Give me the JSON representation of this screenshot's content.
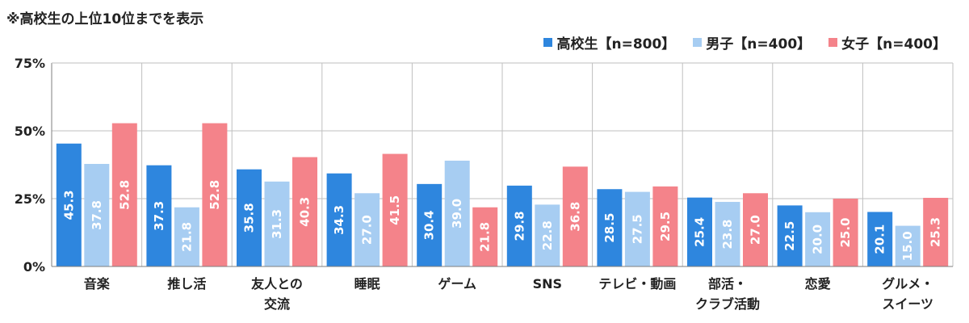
{
  "note": "※高校生の上位10位までを表示",
  "colors": {
    "grid": "#bfbfbf",
    "axis": "#7f7f7f",
    "label": "#ffffff",
    "text": "#222222"
  },
  "chart_data": {
    "type": "bar",
    "title": "",
    "xlabel": "",
    "ylabel": "",
    "ylim": [
      0,
      75
    ],
    "yticks": [
      0,
      25,
      50,
      75
    ],
    "ytick_labels": [
      "0%",
      "25%",
      "50%",
      "75%"
    ],
    "grid": true,
    "legend_position": "top-right",
    "categories": [
      [
        "音楽"
      ],
      [
        "推し活"
      ],
      [
        "友人との",
        "交流"
      ],
      [
        "睡眠"
      ],
      [
        "ゲーム"
      ],
      [
        "SNS"
      ],
      [
        "テレビ・動画"
      ],
      [
        "部活・",
        "クラブ活動"
      ],
      [
        "恋愛"
      ],
      [
        "グルメ・",
        "スイーツ"
      ]
    ],
    "series": [
      {
        "name": "高校生【n=800】",
        "color": "#2e86de",
        "values": [
          45.3,
          37.3,
          35.8,
          34.3,
          30.4,
          29.8,
          28.5,
          25.4,
          22.5,
          20.1
        ]
      },
      {
        "name": "男子【n=400】",
        "color": "#a7cdf2",
        "values": [
          37.8,
          21.8,
          31.3,
          27.0,
          39.0,
          22.8,
          27.5,
          23.8,
          20.0,
          15.0
        ]
      },
      {
        "name": "女子【n=400】",
        "color": "#f4838a",
        "values": [
          52.8,
          52.8,
          40.3,
          41.5,
          21.8,
          36.8,
          29.5,
          27.0,
          25.0,
          25.3
        ]
      }
    ]
  }
}
